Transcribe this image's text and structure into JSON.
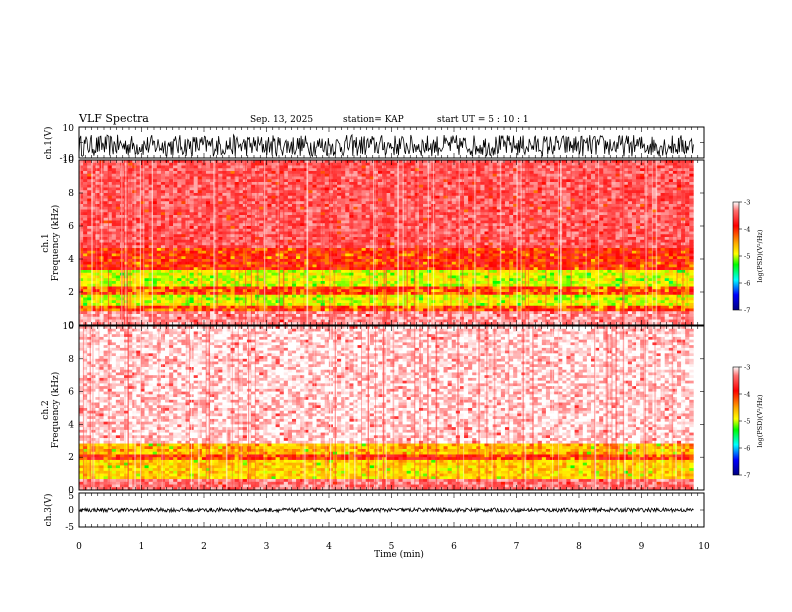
{
  "header": {
    "title": "VLF Spectra",
    "date": "Sep. 13, 2025",
    "station": "station= KAP",
    "start": "start  UT  =   5  : 10 : 1"
  },
  "colors": {
    "axis": "#000000",
    "background": "#ffffff",
    "colormap": [
      "#000080",
      "#0000ff",
      "#00ffff",
      "#00ff00",
      "#ffff00",
      "#ff0000",
      "#ffffff"
    ]
  },
  "chart_data": [
    {
      "type": "line",
      "title": "VLF Spectra",
      "ylabel": "ch.1(V)",
      "ylim": [
        -10,
        10
      ],
      "yticks": [
        "10",
        "-10"
      ],
      "x_range_min": [
        0,
        9.83
      ],
      "series": [
        {
          "name": "ch.1 waveform",
          "mean": -2,
          "amplitude": 7
        }
      ]
    },
    {
      "type": "heatmap",
      "ylabel_top": "ch.1",
      "ylabel": "Frequency  (kHz)",
      "ylim": [
        0,
        10
      ],
      "yticks": [
        "0",
        "2",
        "4",
        "6",
        "8",
        "10"
      ],
      "x_range_min": [
        0,
        9.83
      ],
      "bands_khz": [
        {
          "from": 0.0,
          "to": 0.8,
          "level": -3.3
        },
        {
          "from": 0.8,
          "to": 1.2,
          "level": -4.0
        },
        {
          "from": 1.2,
          "to": 1.8,
          "level": -4.6
        },
        {
          "from": 1.8,
          "to": 2.4,
          "level": -4.0
        },
        {
          "from": 2.4,
          "to": 3.4,
          "level": -4.6
        },
        {
          "from": 3.4,
          "to": 4.6,
          "level": -3.9
        },
        {
          "from": 4.6,
          "to": 10.0,
          "level": -3.5
        }
      ],
      "colorbar": {
        "label": "log(PSD)(V²/Hz)",
        "ticks": [
          "-3",
          "-4",
          "-5",
          "-6",
          "-7"
        ],
        "range": [
          -7,
          -3
        ]
      }
    },
    {
      "type": "heatmap",
      "ylabel_top": "ch.2",
      "ylabel": "Frequency  (kHz)",
      "ylim": [
        0,
        10
      ],
      "yticks": [
        "0",
        "2",
        "4",
        "6",
        "8",
        "10"
      ],
      "x_range_min": [
        0,
        9.83
      ],
      "bands_khz": [
        {
          "from": 0.0,
          "to": 0.6,
          "level": -3.4
        },
        {
          "from": 0.6,
          "to": 1.8,
          "level": -4.4
        },
        {
          "from": 1.8,
          "to": 2.2,
          "level": -3.9
        },
        {
          "from": 2.2,
          "to": 2.9,
          "level": -4.3
        },
        {
          "from": 2.9,
          "to": 10.0,
          "level": -3.1
        }
      ],
      "colorbar": {
        "label": "log(PSD)(V²/Hz)",
        "ticks": [
          "-3",
          "-4",
          "-5",
          "-6",
          "-7"
        ],
        "range": [
          -7,
          -3
        ]
      }
    },
    {
      "type": "line",
      "ylabel": "ch.3(V)",
      "xlabel": "Time  (min)",
      "ylim": [
        -5,
        5
      ],
      "yticks": [
        "5",
        "0",
        "-5"
      ],
      "xlim": [
        0,
        10
      ],
      "xticks": [
        "0",
        "1",
        "2",
        "3",
        "4",
        "5",
        "6",
        "7",
        "8",
        "9",
        "10"
      ],
      "x_range_min": [
        0,
        9.83
      ],
      "series": [
        {
          "name": "ch.3 waveform",
          "mean": 0,
          "amplitude": 0.6
        }
      ]
    }
  ]
}
